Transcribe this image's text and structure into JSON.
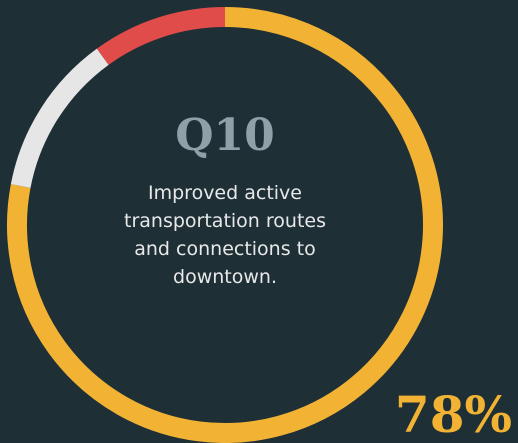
{
  "chart_data": {
    "type": "donut",
    "title": "Q10",
    "subtitle_lines": [
      "Improved active",
      "transportation routes",
      "and connections to",
      "downtown."
    ],
    "values": [
      78,
      12,
      10
    ],
    "value_labels": [
      "78%",
      null,
      null
    ],
    "colors": [
      "#f2b334",
      "#e6e6e6",
      "#e04c4a"
    ]
  }
}
